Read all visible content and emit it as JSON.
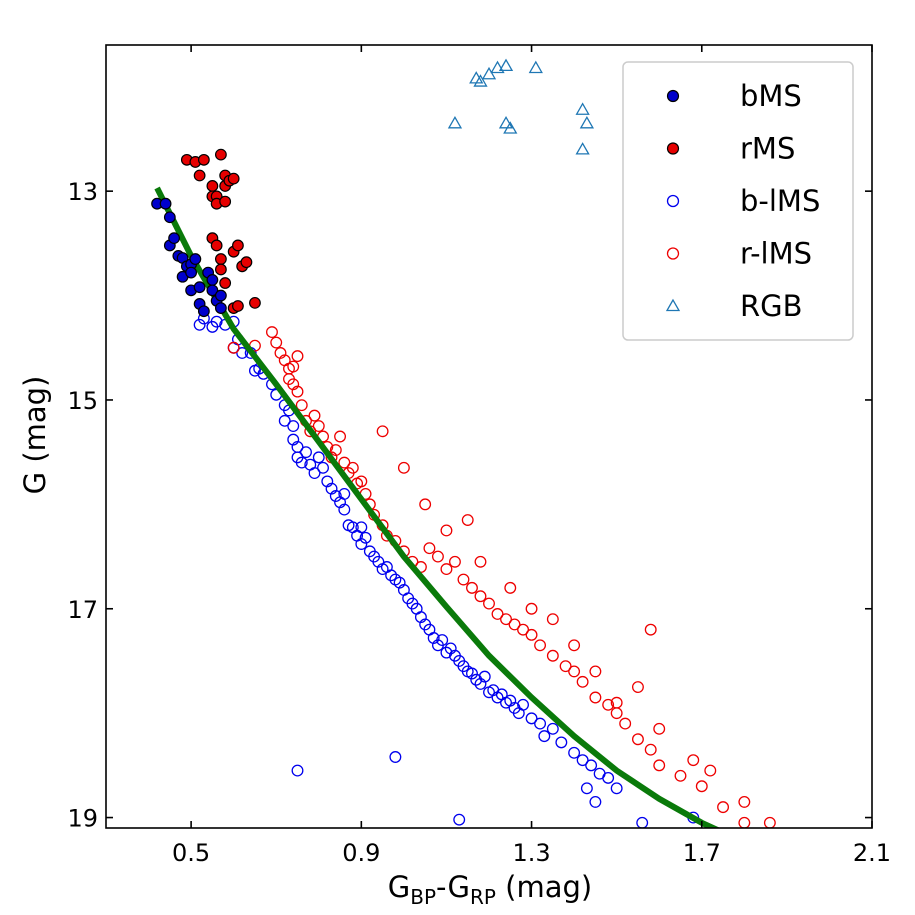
{
  "chart_data": {
    "type": "scatter",
    "title": "",
    "xlabel": {
      "main": "G",
      "sub1": "BP",
      "sep": "-G",
      "sub2": "RP",
      "unit": " (mag)"
    },
    "ylabel": "G (mag)",
    "xlim": [
      0.3,
      2.1
    ],
    "ylim": [
      19.1,
      11.6
    ],
    "y_inverted": true,
    "xticks": [
      0.5,
      0.9,
      1.3,
      1.7,
      2.1
    ],
    "xtick_labels": [
      "0.5",
      "0.9",
      "1.3",
      "1.7",
      "2.1"
    ],
    "yticks": [
      13,
      15,
      17,
      19
    ],
    "ytick_labels": [
      "13",
      "15",
      "17",
      "19"
    ],
    "legend_position": "top-right",
    "colors": {
      "bMS": "#0000cc",
      "rMS": "#e60000",
      "b-lMS": "#0000ee",
      "r-lMS": "#ee0000",
      "RGB": "#1f77b4",
      "fit": "#0a7a0a"
    },
    "fit_line": [
      [
        0.42,
        12.97
      ],
      [
        0.5,
        13.62
      ],
      [
        0.6,
        14.32
      ],
      [
        0.7,
        14.85
      ],
      [
        0.8,
        15.4
      ],
      [
        0.9,
        15.95
      ],
      [
        1.0,
        16.5
      ],
      [
        1.1,
        16.98
      ],
      [
        1.2,
        17.45
      ],
      [
        1.3,
        17.85
      ],
      [
        1.4,
        18.22
      ],
      [
        1.5,
        18.55
      ],
      [
        1.6,
        18.82
      ],
      [
        1.7,
        19.05
      ],
      [
        1.78,
        19.2
      ]
    ],
    "series": [
      {
        "name": "bMS",
        "marker": "filled-circle",
        "points": [
          [
            0.42,
            13.12
          ],
          [
            0.44,
            13.12
          ],
          [
            0.45,
            13.25
          ],
          [
            0.45,
            13.52
          ],
          [
            0.46,
            13.45
          ],
          [
            0.47,
            13.62
          ],
          [
            0.48,
            13.64
          ],
          [
            0.48,
            13.82
          ],
          [
            0.49,
            13.72
          ],
          [
            0.5,
            13.7
          ],
          [
            0.5,
            13.78
          ],
          [
            0.5,
            13.95
          ],
          [
            0.51,
            13.65
          ],
          [
            0.52,
            13.92
          ],
          [
            0.52,
            14.08
          ],
          [
            0.53,
            14.15
          ],
          [
            0.54,
            13.78
          ],
          [
            0.55,
            13.85
          ],
          [
            0.55,
            13.95
          ],
          [
            0.56,
            14.05
          ],
          [
            0.57,
            14.0
          ],
          [
            0.57,
            14.12
          ]
        ]
      },
      {
        "name": "rMS",
        "marker": "filled-circle",
        "points": [
          [
            0.49,
            12.7
          ],
          [
            0.51,
            12.72
          ],
          [
            0.52,
            12.85
          ],
          [
            0.53,
            12.7
          ],
          [
            0.55,
            12.95
          ],
          [
            0.55,
            13.05
          ],
          [
            0.56,
            13.05
          ],
          [
            0.56,
            13.12
          ],
          [
            0.57,
            12.65
          ],
          [
            0.58,
            12.85
          ],
          [
            0.58,
            12.95
          ],
          [
            0.58,
            13.1
          ],
          [
            0.59,
            12.9
          ],
          [
            0.6,
            12.88
          ],
          [
            0.55,
            13.45
          ],
          [
            0.56,
            13.52
          ],
          [
            0.57,
            13.65
          ],
          [
            0.57,
            13.75
          ],
          [
            0.58,
            13.88
          ],
          [
            0.6,
            13.58
          ],
          [
            0.61,
            13.52
          ],
          [
            0.62,
            13.72
          ],
          [
            0.63,
            13.68
          ],
          [
            0.6,
            14.12
          ],
          [
            0.61,
            14.1
          ],
          [
            0.65,
            14.07
          ]
        ]
      },
      {
        "name": "b-lMS",
        "marker": "open-circle",
        "points": [
          [
            0.52,
            14.28
          ],
          [
            0.53,
            14.22
          ],
          [
            0.55,
            14.3
          ],
          [
            0.56,
            14.25
          ],
          [
            0.58,
            14.28
          ],
          [
            0.6,
            14.25
          ],
          [
            0.6,
            14.5
          ],
          [
            0.61,
            14.42
          ],
          [
            0.62,
            14.55
          ],
          [
            0.64,
            14.55
          ],
          [
            0.65,
            14.72
          ],
          [
            0.66,
            14.7
          ],
          [
            0.67,
            14.75
          ],
          [
            0.69,
            14.85
          ],
          [
            0.7,
            14.95
          ],
          [
            0.72,
            15.05
          ],
          [
            0.72,
            15.2
          ],
          [
            0.73,
            15.1
          ],
          [
            0.74,
            15.25
          ],
          [
            0.74,
            15.38
          ],
          [
            0.75,
            15.45
          ],
          [
            0.75,
            15.55
          ],
          [
            0.76,
            15.6
          ],
          [
            0.77,
            15.5
          ],
          [
            0.78,
            15.62
          ],
          [
            0.79,
            15.7
          ],
          [
            0.8,
            15.55
          ],
          [
            0.81,
            15.65
          ],
          [
            0.82,
            15.78
          ],
          [
            0.83,
            15.85
          ],
          [
            0.84,
            15.92
          ],
          [
            0.85,
            15.98
          ],
          [
            0.86,
            15.9
          ],
          [
            0.86,
            16.05
          ],
          [
            0.87,
            16.2
          ],
          [
            0.88,
            16.22
          ],
          [
            0.89,
            16.3
          ],
          [
            0.9,
            16.22
          ],
          [
            0.9,
            16.38
          ],
          [
            0.91,
            16.32
          ],
          [
            0.92,
            16.45
          ],
          [
            0.93,
            16.5
          ],
          [
            0.94,
            16.55
          ],
          [
            0.95,
            16.62
          ],
          [
            0.96,
            16.6
          ],
          [
            0.97,
            16.68
          ],
          [
            0.98,
            16.72
          ],
          [
            0.99,
            16.75
          ],
          [
            1.0,
            16.82
          ],
          [
            1.01,
            16.9
          ],
          [
            1.02,
            16.95
          ],
          [
            1.03,
            17.0
          ],
          [
            1.04,
            17.08
          ],
          [
            1.05,
            17.15
          ],
          [
            1.06,
            17.2
          ],
          [
            1.07,
            17.28
          ],
          [
            1.08,
            17.35
          ],
          [
            1.09,
            17.3
          ],
          [
            1.1,
            17.42
          ],
          [
            1.11,
            17.38
          ],
          [
            1.12,
            17.45
          ],
          [
            1.13,
            17.5
          ],
          [
            1.14,
            17.55
          ],
          [
            1.15,
            17.6
          ],
          [
            1.16,
            17.62
          ],
          [
            1.17,
            17.68
          ],
          [
            1.18,
            17.72
          ],
          [
            1.19,
            17.65
          ],
          [
            1.2,
            17.8
          ],
          [
            1.21,
            17.78
          ],
          [
            1.22,
            17.85
          ],
          [
            1.23,
            17.82
          ],
          [
            1.24,
            17.9
          ],
          [
            1.25,
            17.88
          ],
          [
            1.26,
            17.95
          ],
          [
            1.27,
            18.0
          ],
          [
            1.28,
            17.92
          ],
          [
            1.3,
            18.05
          ],
          [
            1.32,
            18.1
          ],
          [
            1.33,
            18.22
          ],
          [
            1.35,
            18.15
          ],
          [
            1.37,
            18.28
          ],
          [
            1.4,
            18.38
          ],
          [
            1.42,
            18.45
          ],
          [
            1.44,
            18.5
          ],
          [
            1.46,
            18.58
          ],
          [
            1.48,
            18.62
          ],
          [
            1.5,
            18.72
          ],
          [
            1.45,
            18.85
          ],
          [
            1.43,
            18.72
          ],
          [
            1.56,
            19.05
          ],
          [
            1.68,
            19.0
          ],
          [
            0.75,
            18.55
          ],
          [
            0.98,
            18.42
          ],
          [
            1.13,
            19.02
          ]
        ]
      },
      {
        "name": "r-lMS",
        "marker": "open-circle",
        "points": [
          [
            0.6,
            14.5
          ],
          [
            0.65,
            14.48
          ],
          [
            0.69,
            14.35
          ],
          [
            0.7,
            14.45
          ],
          [
            0.71,
            14.55
          ],
          [
            0.72,
            14.62
          ],
          [
            0.73,
            14.7
          ],
          [
            0.74,
            14.68
          ],
          [
            0.75,
            14.58
          ],
          [
            0.73,
            14.8
          ],
          [
            0.74,
            14.85
          ],
          [
            0.75,
            14.92
          ],
          [
            0.76,
            15.05
          ],
          [
            0.77,
            15.2
          ],
          [
            0.78,
            15.3
          ],
          [
            0.79,
            15.15
          ],
          [
            0.8,
            15.25
          ],
          [
            0.81,
            15.35
          ],
          [
            0.82,
            15.45
          ],
          [
            0.83,
            15.55
          ],
          [
            0.84,
            15.48
          ],
          [
            0.85,
            15.35
          ],
          [
            0.86,
            15.6
          ],
          [
            0.87,
            15.7
          ],
          [
            0.88,
            15.65
          ],
          [
            0.89,
            15.8
          ],
          [
            0.9,
            15.78
          ],
          [
            0.91,
            15.9
          ],
          [
            0.92,
            16.0
          ],
          [
            0.93,
            16.1
          ],
          [
            0.95,
            16.2
          ],
          [
            0.96,
            16.3
          ],
          [
            0.98,
            16.35
          ],
          [
            1.0,
            16.45
          ],
          [
            1.02,
            16.55
          ],
          [
            1.04,
            16.6
          ],
          [
            1.06,
            16.42
          ],
          [
            1.08,
            16.5
          ],
          [
            1.1,
            16.62
          ],
          [
            1.12,
            16.55
          ],
          [
            1.14,
            16.72
          ],
          [
            1.16,
            16.8
          ],
          [
            1.18,
            16.88
          ],
          [
            1.2,
            16.95
          ],
          [
            1.22,
            17.05
          ],
          [
            1.24,
            17.1
          ],
          [
            1.26,
            17.15
          ],
          [
            1.28,
            17.2
          ],
          [
            1.3,
            17.25
          ],
          [
            1.32,
            17.35
          ],
          [
            1.35,
            17.45
          ],
          [
            1.38,
            17.55
          ],
          [
            1.4,
            17.6
          ],
          [
            1.42,
            17.7
          ],
          [
            1.45,
            17.85
          ],
          [
            1.48,
            17.92
          ],
          [
            1.5,
            18.0
          ],
          [
            1.52,
            18.1
          ],
          [
            1.55,
            18.25
          ],
          [
            1.58,
            18.35
          ],
          [
            1.6,
            18.5
          ],
          [
            1.65,
            18.6
          ],
          [
            1.7,
            18.7
          ],
          [
            1.75,
            18.9
          ],
          [
            1.8,
            19.05
          ],
          [
            0.95,
            15.3
          ],
          [
            1.0,
            15.65
          ],
          [
            1.05,
            16.0
          ],
          [
            1.1,
            16.25
          ],
          [
            1.15,
            16.15
          ],
          [
            1.18,
            16.55
          ],
          [
            1.25,
            16.8
          ],
          [
            1.3,
            17.0
          ],
          [
            1.35,
            17.1
          ],
          [
            1.4,
            17.35
          ],
          [
            1.45,
            17.6
          ],
          [
            1.5,
            17.9
          ],
          [
            1.55,
            17.75
          ],
          [
            1.58,
            17.2
          ],
          [
            1.6,
            18.15
          ],
          [
            1.68,
            18.45
          ],
          [
            1.72,
            18.55
          ],
          [
            1.8,
            18.85
          ],
          [
            1.86,
            19.05
          ]
        ]
      },
      {
        "name": "RGB",
        "marker": "open-triangle",
        "points": [
          [
            1.18,
            11.95
          ],
          [
            1.2,
            11.88
          ],
          [
            1.22,
            11.82
          ],
          [
            1.24,
            11.8
          ],
          [
            1.31,
            11.82
          ],
          [
            1.42,
            12.22
          ],
          [
            1.43,
            12.35
          ],
          [
            1.24,
            12.35
          ],
          [
            1.25,
            12.4
          ],
          [
            1.12,
            12.35
          ],
          [
            1.42,
            12.6
          ],
          [
            1.17,
            11.92
          ]
        ]
      }
    ]
  }
}
